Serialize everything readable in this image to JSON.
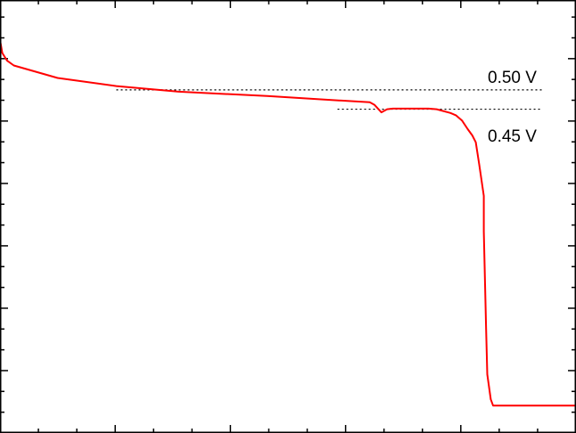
{
  "chart_data": {
    "type": "line",
    "title": "",
    "xlabel": "",
    "ylabel": "",
    "xlim": [
      0,
      5.0
    ],
    "ylim": [
      0,
      6.94
    ],
    "x_major_step": 1,
    "x_minor_per_major": 3,
    "y_major_step": 1,
    "y_minor_per_major": 3,
    "tick_labels_shown": false,
    "grid": false,
    "series": [
      {
        "color": "#ff0000",
        "x": [
          0,
          0.02,
          0.06,
          0.12,
          0.5,
          1.01,
          1.55,
          2.32,
          2.94,
          3.21,
          3.25,
          3.31,
          3.36,
          3.41,
          3.72,
          3.79,
          3.91,
          3.96,
          4.01,
          4.06,
          4.1,
          4.13,
          4.16,
          4.2,
          4.2,
          4.22,
          4.23,
          4.26,
          4.28,
          5.0
        ],
        "y": [
          6.3,
          6.09,
          5.97,
          5.89,
          5.69,
          5.56,
          5.47,
          5.4,
          5.33,
          5.3,
          5.26,
          5.14,
          5.19,
          5.2,
          5.2,
          5.19,
          5.13,
          5.09,
          5.01,
          4.87,
          4.77,
          4.66,
          4.3,
          3.8,
          3.23,
          1.66,
          0.94,
          0.54,
          0.44,
          0.44
        ]
      }
    ],
    "reference_lines": [
      {
        "label": "0.50 V",
        "y": 5.5,
        "x_range": [
          1.01,
          4.71
        ],
        "style": "dotted",
        "color": "#000000"
      },
      {
        "label": "0.45 V",
        "y": 5.19,
        "x_range": [
          2.93,
          4.69
        ],
        "style": "dotted",
        "color": "#000000"
      }
    ]
  }
}
